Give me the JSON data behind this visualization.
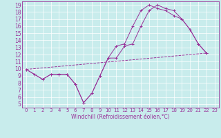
{
  "background_color": "#c8ecec",
  "line_color": "#993399",
  "xlim": [
    -0.5,
    23.5
  ],
  "ylim": [
    4.5,
    19.5
  ],
  "xticks": [
    0,
    1,
    2,
    3,
    4,
    5,
    6,
    7,
    8,
    9,
    10,
    11,
    12,
    13,
    14,
    15,
    16,
    17,
    18,
    19,
    20,
    21,
    22,
    23
  ],
  "yticks": [
    5,
    6,
    7,
    8,
    9,
    10,
    11,
    12,
    13,
    14,
    15,
    16,
    17,
    18,
    19
  ],
  "xlabel": "Windchill (Refroidissement éolien,°C)",
  "line1_x": [
    0,
    1,
    2,
    3,
    4,
    4,
    5,
    6,
    7,
    8,
    9,
    10,
    11,
    12,
    13,
    14,
    15,
    16,
    17,
    18,
    19,
    20,
    21,
    22
  ],
  "line1_y": [
    9.9,
    9.2,
    8.5,
    9.2,
    9.2,
    9.2,
    9.2,
    7.8,
    5.2,
    6.5,
    9.0,
    11.5,
    13.2,
    13.5,
    16.0,
    18.2,
    19.0,
    18.5,
    18.2,
    17.5,
    17.0,
    15.5,
    13.5,
    12.2
  ],
  "line2_x": [
    0,
    1,
    2,
    3,
    4,
    5,
    6,
    7,
    8,
    9,
    10,
    11,
    12,
    13,
    14,
    15,
    16,
    17,
    18,
    19,
    20,
    21,
    22
  ],
  "line2_y": [
    9.9,
    9.2,
    8.5,
    9.2,
    9.2,
    9.2,
    7.8,
    5.2,
    6.5,
    9.0,
    11.5,
    11.5,
    13.2,
    13.5,
    16.0,
    18.2,
    19.0,
    18.5,
    18.2,
    17.0,
    15.5,
    13.5,
    12.2
  ],
  "line3_x": [
    0,
    22
  ],
  "line3_y": [
    9.9,
    12.2
  ],
  "grid_color": "#ffffff",
  "tick_fontsize": 5,
  "xlabel_fontsize": 5.5
}
